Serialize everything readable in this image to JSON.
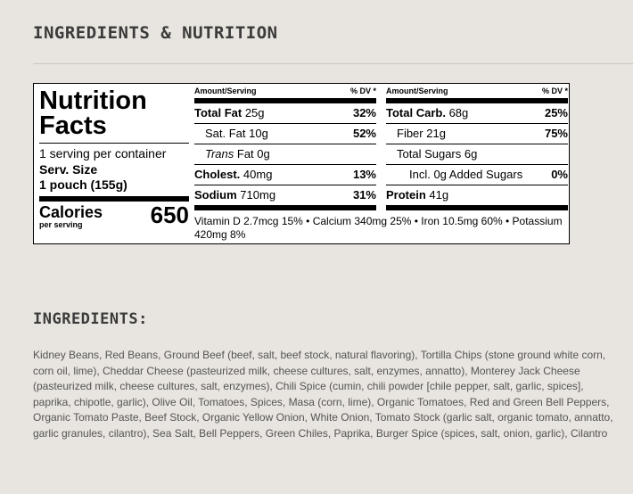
{
  "headings": {
    "main": "INGREDIENTS & NUTRITION",
    "ingredients": "INGREDIENTS:"
  },
  "label": {
    "title_line1": "Nutrition",
    "title_line2": "Facts",
    "servings": "1 serving per container",
    "serv_size_label": "Serv. Size",
    "serv_size_value": "1 pouch (155g)",
    "calories_label": "Calories",
    "calories_sub": "per serving",
    "calories_value": "650",
    "col_head_amount": "Amount/Serving",
    "col_head_dv": "% DV *",
    "left": {
      "total_fat_name": "Total Fat",
      "total_fat_amt": "25g",
      "total_fat_dv": "32%",
      "sat_fat_name": "Sat. Fat",
      "sat_fat_amt": "10g",
      "sat_fat_dv": "52%",
      "trans_fat_italic": "Trans",
      "trans_fat_rest": "Fat 0g",
      "chol_name": "Cholest.",
      "chol_amt": "40mg",
      "chol_dv": "13%",
      "sodium_name": "Sodium",
      "sodium_amt": "710mg",
      "sodium_dv": "31%"
    },
    "right": {
      "carb_name": "Total Carb.",
      "carb_amt": "68g",
      "carb_dv": "25%",
      "fiber_name": "Fiber",
      "fiber_amt": "21g",
      "fiber_dv": "75%",
      "sugars": "Total Sugars 6g",
      "added_sugars": "Incl. 0g Added Sugars",
      "added_sugars_dv": "0%",
      "protein_name": "Protein",
      "protein_amt": "41g"
    },
    "vitamins": "Vitamin D 2.7mcg 15%  •  Calcium 340mg 25%  •  Iron 10.5mg 60%  •  Potassium 420mg 8%"
  },
  "ingredients_text": "Kidney Beans, Red Beans, Ground Beef (beef, salt, beef stock, natural flavoring), Tortilla Chips (stone ground white corn, corn oil, lime), Cheddar Cheese (pasteurized milk, cheese cultures, salt, enzymes, annatto), Monterey Jack Cheese (pasteurized milk, cheese cultures, salt, enzymes), Chili Spice (cumin, chili powder [chile pepper, salt, garlic, spices], paprika, chipotle, garlic), Olive Oil, Tomatoes, Spices, Masa (corn, lime), Organic Tomatoes, Red and Green Bell Peppers, Organic Tomato Paste, Beef Stock, Organic Yellow Onion, White Onion, Tomato Stock (garlic salt, organic tomato, annatto, garlic granules, cilantro), Sea Salt, Bell Peppers, Green Chiles, Paprika, Burger Spice (spices, salt, onion, garlic), Cilantro"
}
